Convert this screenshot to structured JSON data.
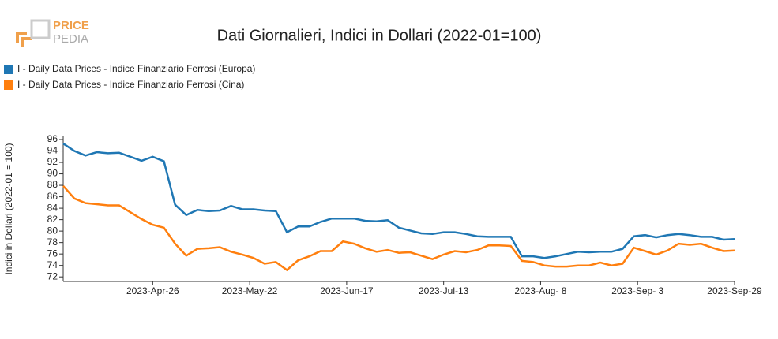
{
  "logo": {
    "line1": "PRICE",
    "line2": "PEDIA"
  },
  "chart_data": {
    "type": "line",
    "title": "Dati Giornalieri, Indici in Dollari (2022-01=100)",
    "y_label": "Indici in Dollari (2022-01 = 100)",
    "x": [
      "2023-04-02",
      "2023-04-05",
      "2023-04-08",
      "2023-04-11",
      "2023-04-14",
      "2023-04-17",
      "2023-04-20",
      "2023-04-23",
      "2023-04-26",
      "2023-04-29",
      "2023-05-02",
      "2023-05-05",
      "2023-05-08",
      "2023-05-11",
      "2023-05-14",
      "2023-05-17",
      "2023-05-20",
      "2023-05-23",
      "2023-05-26",
      "2023-05-29",
      "2023-06-01",
      "2023-06-04",
      "2023-06-07",
      "2023-06-10",
      "2023-06-13",
      "2023-06-16",
      "2023-06-19",
      "2023-06-22",
      "2023-06-25",
      "2023-06-28",
      "2023-07-01",
      "2023-07-04",
      "2023-07-07",
      "2023-07-10",
      "2023-07-13",
      "2023-07-16",
      "2023-07-19",
      "2023-07-22",
      "2023-07-25",
      "2023-07-28",
      "2023-07-31",
      "2023-08-03",
      "2023-08-06",
      "2023-08-09",
      "2023-08-12",
      "2023-08-15",
      "2023-08-18",
      "2023-08-21",
      "2023-08-24",
      "2023-08-27",
      "2023-08-30",
      "2023-09-02",
      "2023-09-05",
      "2023-09-08",
      "2023-09-11",
      "2023-09-14",
      "2023-09-17",
      "2023-09-20",
      "2023-09-23",
      "2023-09-26",
      "2023-09-29"
    ],
    "series": [
      {
        "name": "I - Daily Data Prices - Indice Finanziario Ferrosi (Europa)",
        "color": "#1f77b4",
        "values": [
          95.3,
          94,
          93.2,
          93.8,
          93.6,
          93.7,
          93,
          92.3,
          93,
          92.2,
          84.6,
          82.8,
          83.7,
          83.5,
          83.6,
          84.4,
          83.8,
          83.8,
          83.6,
          83.5,
          79.8,
          80.8,
          80.8,
          81.6,
          82.2,
          82.2,
          82.2,
          81.8,
          81.7,
          81.9,
          80.6,
          80.1,
          79.6,
          79.5,
          79.8,
          79.8,
          79.5,
          79.1,
          79,
          79,
          79,
          75.6,
          75.6,
          75.3,
          75.6,
          76,
          76.4,
          76.3,
          76.4,
          76.4,
          76.9,
          79.1,
          79.3,
          78.9,
          79.3,
          79.5,
          79.3,
          79,
          79,
          78.5,
          78.6
        ]
      },
      {
        "name": "I - Daily Data Prices - Indice Finanziario Ferrosi (Cina)",
        "color": "#ff7f0e",
        "values": [
          87.9,
          85.7,
          84.9,
          84.7,
          84.5,
          84.5,
          83.3,
          82.1,
          81.1,
          80.6,
          77.8,
          75.7,
          76.9,
          77,
          77.2,
          76.4,
          75.9,
          75.3,
          74.3,
          74.6,
          73.2,
          74.9,
          75.6,
          76.5,
          76.5,
          78.2,
          77.8,
          77,
          76.4,
          76.7,
          76.2,
          76.3,
          75.7,
          75.1,
          75.9,
          76.5,
          76.3,
          76.7,
          77.5,
          77.5,
          77.4,
          74.8,
          74.6,
          74,
          73.8,
          73.8,
          74,
          74,
          74.5,
          74,
          74.3,
          77.1,
          76.5,
          75.9,
          76.6,
          77.8,
          77.6,
          77.8,
          77.1,
          76.5,
          76.6
        ]
      }
    ],
    "xlim": [
      "2023-04-02",
      "2023-09-29"
    ],
    "xticks": [
      {
        "value": "2023-04-26",
        "label": "2023-Apr-26"
      },
      {
        "value": "2023-05-22",
        "label": "2023-May-22"
      },
      {
        "value": "2023-06-17",
        "label": "2023-Jun-17"
      },
      {
        "value": "2023-07-13",
        "label": "2023-Jul-13"
      },
      {
        "value": "2023-08-08",
        "label": "2023-Aug- 8"
      },
      {
        "value": "2023-09-03",
        "label": "2023-Sep- 3"
      },
      {
        "value": "2023-09-29",
        "label": "2023-Sep-29"
      }
    ],
    "ylim": [
      71.2,
      96
    ],
    "yticks": [
      72,
      74,
      76,
      78,
      80,
      82,
      84,
      86,
      88,
      90,
      92,
      94,
      96
    ]
  }
}
